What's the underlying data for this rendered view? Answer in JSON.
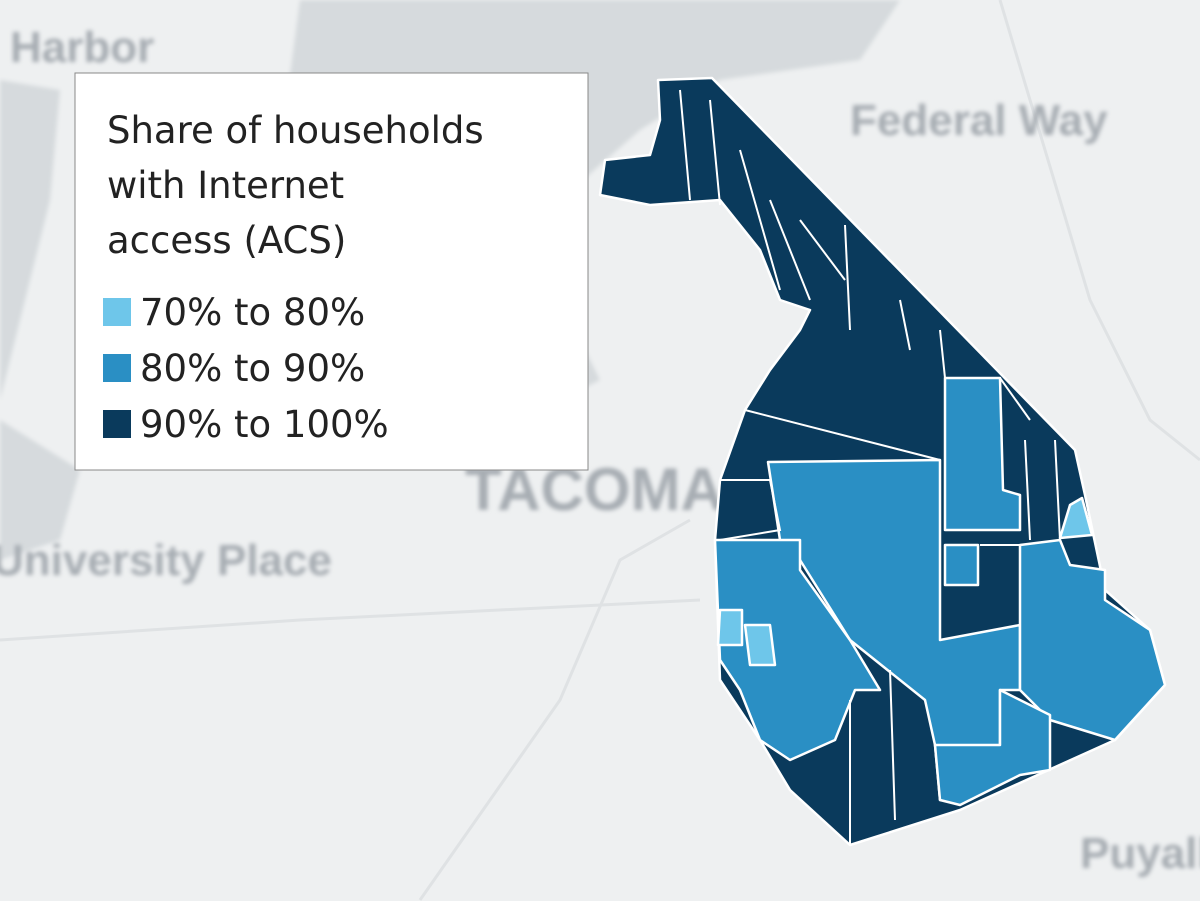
{
  "legend": {
    "title_lines": [
      "Share of households",
      "with Internet",
      "access (ACS)"
    ],
    "items": [
      {
        "label": "70% to 80%",
        "color": "#6ec6ea"
      },
      {
        "label": "80% to 90%",
        "color": "#2a8fc4"
      },
      {
        "label": "90% to 100%",
        "color": "#0a3a5c"
      }
    ]
  },
  "places": [
    "Harbor",
    "Federal Way",
    "TACOMA",
    "University Place",
    "Puyallup"
  ]
}
